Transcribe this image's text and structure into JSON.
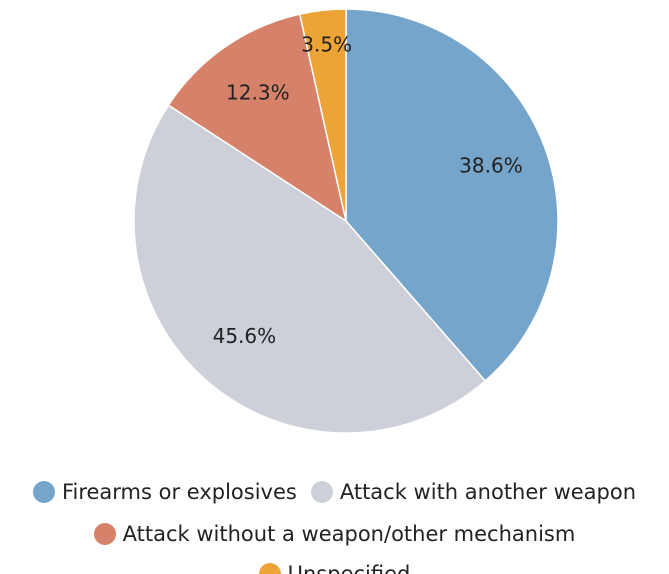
{
  "chart_data": {
    "type": "pie",
    "title": "",
    "slices": [
      {
        "label": "Firearms or explosives",
        "value": 38.6,
        "display": "38.6%",
        "color": "#75a5cb"
      },
      {
        "label": "Attack with another weapon",
        "value": 45.6,
        "display": "45.6%",
        "color": "#cdd0d8"
      },
      {
        "label": "Attack without a weapon/other mechanism",
        "value": 12.3,
        "display": "12.3%",
        "color": "#d6826a"
      },
      {
        "label": "Unspecified",
        "value": 3.5,
        "display": "3.5%",
        "color": "#eea337"
      }
    ],
    "legend": {
      "position": "bottom",
      "rows": [
        [
          0,
          1
        ],
        [
          2
        ],
        [
          3
        ]
      ]
    }
  }
}
